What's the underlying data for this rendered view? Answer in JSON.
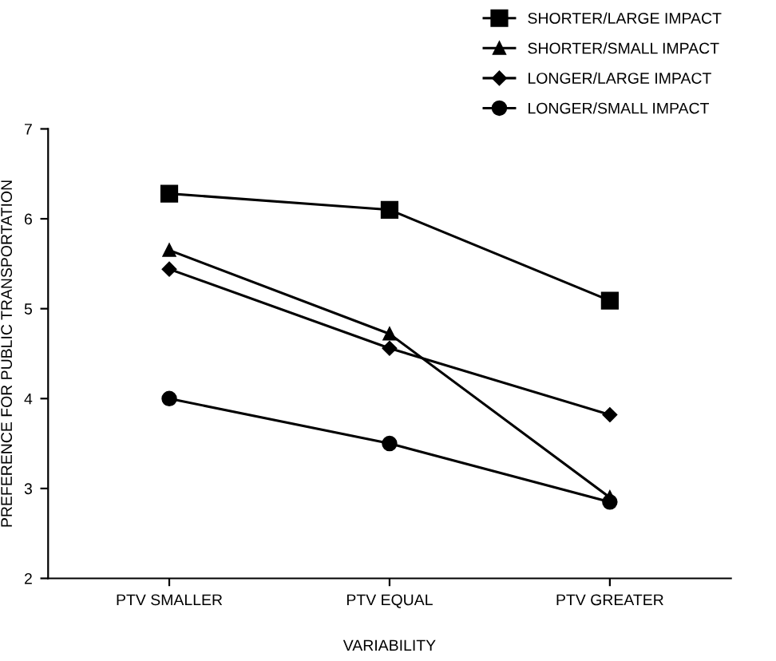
{
  "chart_data": {
    "type": "line",
    "xlabel": "VARIABILITY",
    "ylabel": "PREFERENCE FOR PUBLIC TRANSPORTATION",
    "categories": [
      "PTV SMALLER",
      "PTV EQUAL",
      "PTV GREATER"
    ],
    "ylim": [
      2,
      7
    ],
    "yticks": [
      2,
      3,
      4,
      5,
      6,
      7
    ],
    "grid": false,
    "legend": "top right",
    "line_style": "solid",
    "series": [
      {
        "name": "SHORTER/LARGE IMPACT",
        "color": "#000000",
        "marker": "square",
        "values": [
          6.28,
          6.1,
          5.09
        ]
      },
      {
        "name": "SHORTER/SMALL IMPACT",
        "color": "#000000",
        "marker": "triangle",
        "values": [
          5.65,
          4.72,
          2.9
        ]
      },
      {
        "name": "LONGER/LARGE IMPACT",
        "color": "#000000",
        "marker": "diamond",
        "values": [
          5.44,
          4.56,
          3.82
        ]
      },
      {
        "name": "LONGER/SMALL IMPACT",
        "color": "#000000",
        "marker": "circle",
        "values": [
          4.0,
          3.5,
          2.85
        ]
      }
    ]
  }
}
